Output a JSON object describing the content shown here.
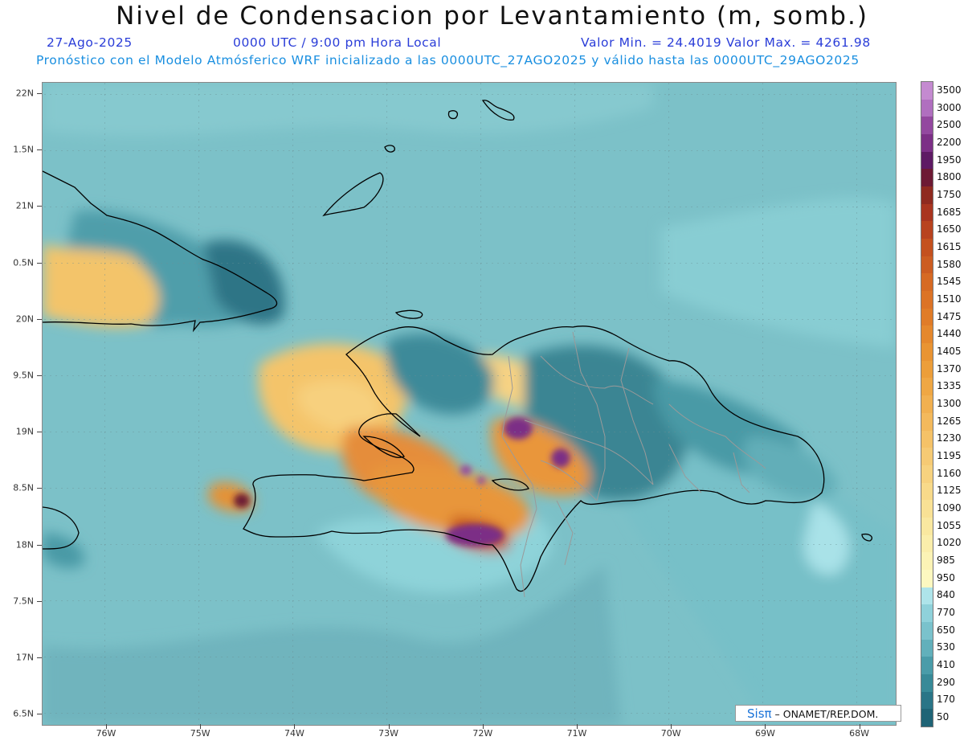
{
  "title": "Nivel de Condensacion por Levantamiento (m, somb.)",
  "date": "27-Ago-2025",
  "time": "0000 UTC / 9:00 pm Hora Local",
  "minmax": "Valor Min. = 24.4019   Valor Max. = 4261.98",
  "forecast": "Pronóstico con el Modelo Atmósferico WRF inicializado a las 0000UTC_27AGO2025 y válido hasta las  0000UTC_29AGO2025",
  "credit": {
    "brand": "Sisπ",
    "text": " – ONAMET/REP.DOM."
  },
  "lat_labels": [
    "22N",
    "1.5N",
    "21N",
    "0.5N",
    "20N",
    "9.5N",
    "19N",
    "8.5N",
    "18N",
    "7.5N",
    "17N",
    "6.5N"
  ],
  "lon_labels": [
    "76W",
    "75W",
    "74W",
    "73W",
    "72W",
    "71W",
    "70W",
    "69W",
    "68W"
  ],
  "colorbar": {
    "labels": [
      "3500",
      "3000",
      "2500",
      "2200",
      "1950",
      "1800",
      "1750",
      "1685",
      "1650",
      "1615",
      "1580",
      "1545",
      "1510",
      "1475",
      "1440",
      "1405",
      "1370",
      "1335",
      "1300",
      "1265",
      "1230",
      "1195",
      "1160",
      "1125",
      "1090",
      "1055",
      "1020",
      "985",
      "950",
      "840",
      "770",
      "650",
      "530",
      "410",
      "290",
      "170",
      "50"
    ],
    "colors": [
      "#c48ad0",
      "#b06fbf",
      "#93489f",
      "#7c2f86",
      "#5e1a64",
      "#6d1a34",
      "#8f2a20",
      "#a93520",
      "#b8431f",
      "#c4511f",
      "#cc5d22",
      "#d66a24",
      "#dc7326",
      "#e07c28",
      "#e5882d",
      "#e99433",
      "#ec9e3a",
      "#efa744",
      "#f1b050",
      "#f3b95c",
      "#f5c268",
      "#f6ca74",
      "#f7d27f",
      "#f8da8a",
      "#f9e195",
      "#fae8a0",
      "#fbeeab",
      "#fcf3b5",
      "#fdf8c0",
      "#aee4ea",
      "#8fd1da",
      "#7ac2cc",
      "#62b0bb",
      "#4a9ca9",
      "#388a98",
      "#2a7587",
      "#1f6476"
    ]
  },
  "colors": {
    "sea": "#7cc1c8",
    "land_border": "#000000",
    "province": "#9a9a9a",
    "title_blue": "#2a3dd8",
    "sub_blue": "#1a8fe0"
  }
}
